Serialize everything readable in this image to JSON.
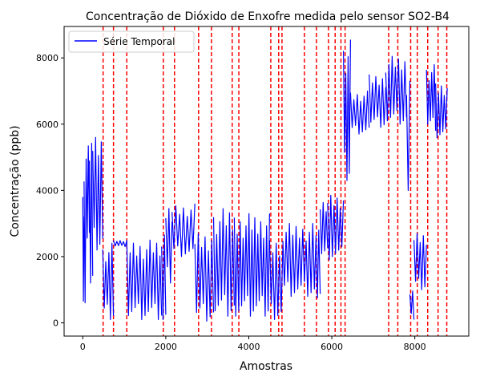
{
  "chart_data": {
    "type": "line",
    "title": "Concentração de Dióxido de Enxofre medida pelo sensor SO2-B4",
    "xlabel": "Amostras",
    "ylabel": "Concentração (ppb)",
    "xlim": [
      -450,
      9300
    ],
    "ylim": [
      -400,
      8950
    ],
    "xticks": [
      0,
      2000,
      4000,
      6000,
      8000
    ],
    "yticks": [
      0,
      2000,
      4000,
      6000,
      8000
    ],
    "legend": {
      "position": "upper-left",
      "entries": [
        "Série Temporal"
      ]
    },
    "series": [
      {
        "name": "Série Temporal",
        "color": "#0000ff",
        "segments": [
          {
            "x0": 0,
            "x1": 30,
            "lo": 100,
            "hi": 3800,
            "period": 30
          },
          {
            "x0": 30,
            "x1": 80,
            "lo": 50,
            "hi": 5600,
            "period": 25
          },
          {
            "x0": 80,
            "x1": 160,
            "lo": 2400,
            "hi": 5600,
            "period": 25
          },
          {
            "x0": 160,
            "x1": 240,
            "lo": 1200,
            "hi": 5600,
            "period": 30
          },
          {
            "x0": 240,
            "x1": 480,
            "lo": 2200,
            "hi": 5600,
            "period": 35
          },
          {
            "x0": 480,
            "x1": 740,
            "lo": 100,
            "hi": 2400,
            "period": 40
          },
          {
            "x0": 740,
            "x1": 1060,
            "lo": 2300,
            "hi": 2500,
            "period": 40
          },
          {
            "x0": 1060,
            "x1": 1900,
            "lo": 100,
            "hi": 2500,
            "period": 40
          },
          {
            "x0": 1900,
            "x1": 2000,
            "lo": 100,
            "hi": 3000,
            "period": 40
          },
          {
            "x0": 2000,
            "x1": 2150,
            "lo": 1200,
            "hi": 3650,
            "period": 40
          },
          {
            "x0": 2150,
            "x1": 2700,
            "lo": 2000,
            "hi": 3600,
            "period": 45
          },
          {
            "x0": 2700,
            "x1": 3150,
            "lo": 50,
            "hi": 2700,
            "period": 40
          },
          {
            "x0": 3150,
            "x1": 3650,
            "lo": 200,
            "hi": 3450,
            "period": 40
          },
          {
            "x0": 3650,
            "x1": 4500,
            "lo": 200,
            "hi": 3300,
            "period": 35
          },
          {
            "x0": 4500,
            "x1": 4820,
            "lo": 100,
            "hi": 2500,
            "period": 40
          },
          {
            "x0": 4820,
            "x1": 5620,
            "lo": 800,
            "hi": 3000,
            "period": 40
          },
          {
            "x0": 5620,
            "x1": 5720,
            "lo": 500,
            "hi": 3000,
            "period": 40
          },
          {
            "x0": 5720,
            "x1": 5900,
            "lo": 2000,
            "hi": 3700,
            "period": 40
          },
          {
            "x0": 5900,
            "x1": 6280,
            "lo": 1900,
            "hi": 3850,
            "period": 40
          },
          {
            "x0": 6280,
            "x1": 6450,
            "lo": 4300,
            "hi": 8550,
            "period": 30
          },
          {
            "x0": 6450,
            "x1": 6900,
            "lo": 5700,
            "hi": 7000,
            "period": 40
          },
          {
            "x0": 6900,
            "x1": 7300,
            "lo": 5900,
            "hi": 7500,
            "period": 40
          },
          {
            "x0": 7300,
            "x1": 7800,
            "lo": 6000,
            "hi": 8050,
            "period": 40
          },
          {
            "x0": 7800,
            "x1": 7880,
            "lo": 4000,
            "hi": 7600,
            "period": 40
          },
          {
            "x0": 7880,
            "x1": 7980,
            "lo": 100,
            "hi": 1000,
            "period": 30
          },
          {
            "x0": 7980,
            "x1": 8280,
            "lo": 1000,
            "hi": 2700,
            "period": 40
          },
          {
            "x0": 8280,
            "x1": 8500,
            "lo": 5800,
            "hi": 7800,
            "period": 30
          },
          {
            "x0": 8500,
            "x1": 8780,
            "lo": 5500,
            "hi": 7300,
            "period": 35
          }
        ]
      }
    ],
    "vlines": {
      "color": "#ff0000",
      "style": "dashed",
      "x": [
        490,
        740,
        1060,
        1940,
        2210,
        2790,
        3100,
        3600,
        3760,
        4530,
        4720,
        4800,
        5340,
        5630,
        5920,
        6080,
        6220,
        6320,
        7370,
        7590,
        7900,
        8060,
        8310,
        8560,
        8770
      ]
    }
  }
}
